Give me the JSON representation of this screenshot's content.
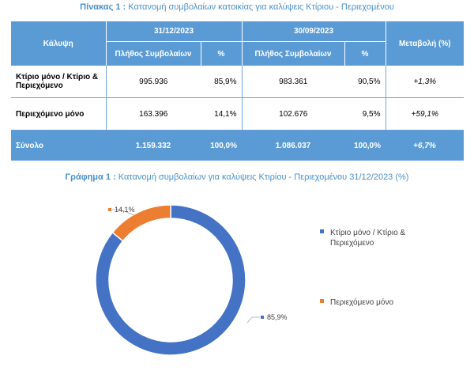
{
  "table_caption": {
    "prefix": "Πίνακας 1 :",
    "text": "Κατανομή συμβολαίων κατοικίας για καλύψεις Κτίριου - Περιεχομένου"
  },
  "table": {
    "col_coverage": "Κάλυψη",
    "period1": "31/12/2023",
    "period2": "30/09/2023",
    "col_change": "Μεταβολή (%)",
    "sub_count": "Πλήθος Συμβολαίων",
    "sub_pct": "%",
    "rows": [
      {
        "label": "Κτίριο μόνο / Κτίριο & Περιεχόμενο",
        "c1": "995.936",
        "p1": "85,9%",
        "c2": "983.361",
        "p2": "90,5%",
        "chg": "+1,3%"
      },
      {
        "label": "Περιεχόμενο μόνο",
        "c1": "163.396",
        "p1": "14,1%",
        "c2": "102.676",
        "p2": "9,5%",
        "chg": "+59,1%"
      }
    ],
    "total": {
      "label": "Σύνολο",
      "c1": "1.159.332",
      "p1": "100,0%",
      "c2": "1.086.037",
      "p2": "100,0%",
      "chg": "+6,7%"
    }
  },
  "chart_caption": {
    "prefix": "Γράφημα 1 :",
    "text": "Κατανομή συμβολαίων για καλύψεις  Κτιρίου - Περιεχομένου 31/12/2023 (%)"
  },
  "chart_data": {
    "type": "pie",
    "donut": true,
    "categories": [
      "Κτίριο μόνο / Κτίριο & Περιεχόμενο",
      "Περιεχόμενο μόνο"
    ],
    "values": [
      85.9,
      14.1
    ],
    "data_labels": [
      "85,9%",
      "14,1%"
    ],
    "legend": [
      "Κτίριο μόνο / Κτίριο &",
      "Περιεχόμενο",
      "Περιεχόμενο μόνο"
    ],
    "legend_placement": "right",
    "colors": [
      "#4472c4",
      "#ed7d31"
    ]
  }
}
